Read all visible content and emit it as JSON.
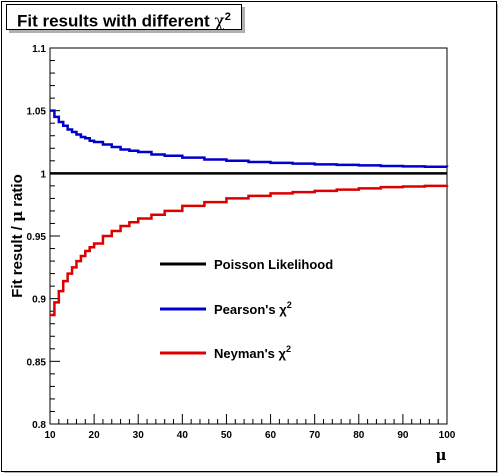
{
  "title_prefix": "Fit results with different",
  "title_symbol": "χ",
  "title_sup": "2",
  "chart_data": {
    "type": "line",
    "ylabel_prefix": "Fit result / ",
    "ylabel_symbol": "μ",
    "ylabel_suffix": " ratio",
    "xlabel": "μ",
    "xlim": [
      10,
      100
    ],
    "ylim": [
      0.8,
      1.1
    ],
    "x_ticks": [
      10,
      20,
      30,
      40,
      50,
      60,
      70,
      80,
      90,
      100
    ],
    "x_tick_labels": [
      "10",
      "20",
      "30",
      "40",
      "50",
      "60",
      "70",
      "80",
      "90",
      "100"
    ],
    "y_ticks": [
      0.8,
      0.85,
      0.9,
      0.95,
      1.0,
      1.05,
      1.1
    ],
    "y_tick_labels": [
      "0.8",
      "0.85",
      "0.9",
      "0.95",
      "1",
      "1.05",
      "1.1"
    ],
    "legend_position": "center-right",
    "x": [
      10,
      11,
      12,
      13,
      14,
      15,
      16,
      17,
      18,
      19,
      20,
      22,
      24,
      26,
      28,
      30,
      33,
      36,
      40,
      45,
      50,
      55,
      60,
      65,
      70,
      75,
      80,
      85,
      90,
      95,
      100
    ],
    "series": [
      {
        "name": "Poisson Likelihood",
        "sup": "",
        "color": "#000000",
        "values": [
          1.0,
          1.0,
          1.0,
          1.0,
          1.0,
          1.0,
          1.0,
          1.0,
          1.0,
          1.0,
          1.0,
          1.0,
          1.0,
          1.0,
          1.0,
          1.0,
          1.0,
          1.0,
          1.0,
          1.0,
          1.0,
          1.0,
          1.0,
          1.0,
          1.0,
          1.0,
          1.0,
          1.0,
          1.0,
          1.0,
          1.0
        ]
      },
      {
        "name": "Pearson's χ",
        "sup": "2",
        "color": "#0000cc",
        "values": [
          1.05,
          1.045,
          1.041,
          1.038,
          1.035,
          1.033,
          1.031,
          1.029,
          1.028,
          1.026,
          1.025,
          1.023,
          1.021,
          1.019,
          1.018,
          1.017,
          1.015,
          1.014,
          1.0125,
          1.011,
          1.01,
          1.009,
          1.0083,
          1.0077,
          1.0071,
          1.0067,
          1.0063,
          1.0059,
          1.0056,
          1.0053,
          1.005
        ]
      },
      {
        "name": "Neyman's χ",
        "sup": "2",
        "color": "#dd0000",
        "values": [
          0.887,
          0.897,
          0.906,
          0.914,
          0.92,
          0.925,
          0.93,
          0.934,
          0.938,
          0.941,
          0.944,
          0.95,
          0.954,
          0.958,
          0.961,
          0.964,
          0.967,
          0.97,
          0.974,
          0.977,
          0.98,
          0.982,
          0.984,
          0.985,
          0.986,
          0.987,
          0.988,
          0.989,
          0.9895,
          0.99,
          0.9905
        ]
      }
    ]
  }
}
